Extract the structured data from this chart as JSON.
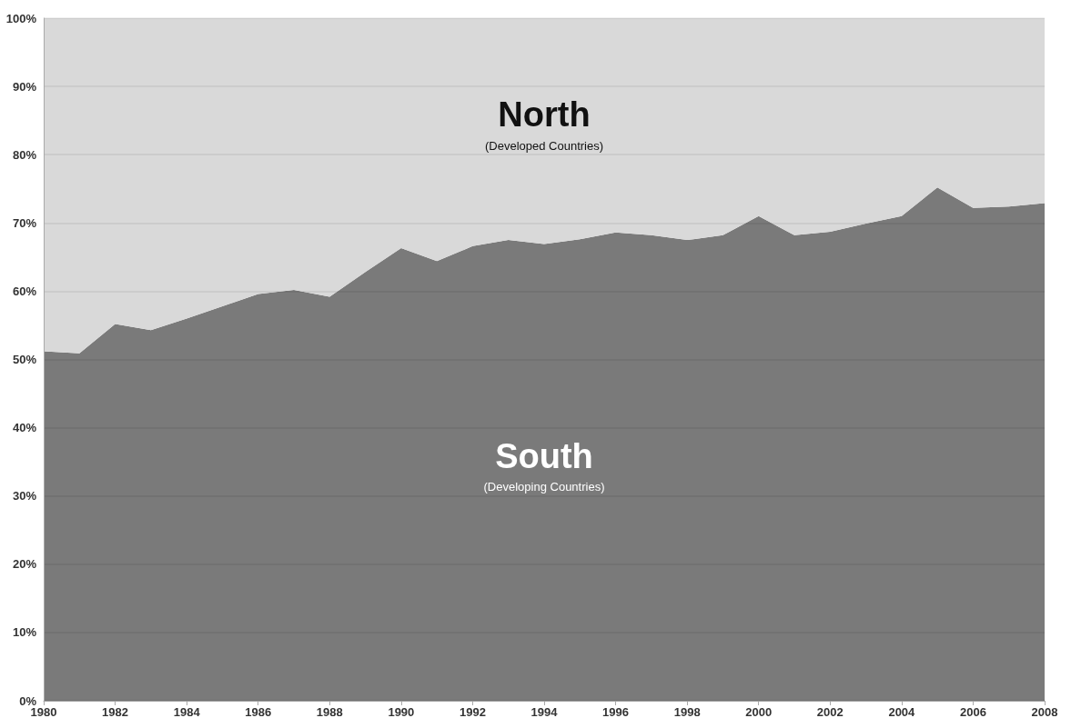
{
  "chart_data": {
    "type": "area",
    "stacked": true,
    "x": [
      1980,
      1981,
      1982,
      1983,
      1984,
      1985,
      1986,
      1987,
      1988,
      1989,
      1990,
      1991,
      1992,
      1993,
      1994,
      1995,
      1996,
      1997,
      1998,
      1999,
      2000,
      2001,
      2002,
      2003,
      2004,
      2005,
      2006,
      2007,
      2008
    ],
    "series": [
      {
        "name": "South",
        "color": "#7a7a7a",
        "values": [
          51.2,
          50.9,
          55.2,
          54.3,
          56,
          57.8,
          59.6,
          60.2,
          59.2,
          62.8,
          66.3,
          64.4,
          66.6,
          67.5,
          66.9,
          67.6,
          68.6,
          68.2,
          67.5,
          68.2,
          71,
          68.2,
          68.7,
          69.9,
          71,
          75.2,
          72.2,
          72.4,
          72.9
        ]
      },
      {
        "name": "North",
        "color": "#d9d9d9",
        "values": [
          48.8,
          49.1,
          44.8,
          45.7,
          44,
          42.2,
          40.4,
          39.8,
          40.8,
          37.2,
          33.7,
          35.6,
          33.4,
          32.5,
          33.1,
          32.4,
          31.4,
          31.8,
          32.5,
          31.8,
          29,
          31.8,
          31.3,
          30.1,
          29,
          24.8,
          27.8,
          27.6,
          27.1
        ]
      }
    ],
    "annotations": [
      "(Developing Countries)",
      "(Developed Countries)"
    ],
    "xlim": [
      1980,
      2008
    ],
    "xticks": [
      1980,
      1982,
      1984,
      1986,
      1988,
      1990,
      1992,
      1994,
      1996,
      1998,
      2000,
      2002,
      2004,
      2006,
      2008
    ],
    "ylim": [
      0,
      100
    ],
    "yticks": [
      {
        "value": 0,
        "label": "0%"
      },
      {
        "value": 10,
        "label": "10%"
      },
      {
        "value": 20,
        "label": "20%"
      },
      {
        "value": 30,
        "label": "30%"
      },
      {
        "value": 40,
        "label": "40%"
      },
      {
        "value": 50,
        "label": "50%"
      },
      {
        "value": 60,
        "label": "60%"
      },
      {
        "value": 70,
        "label": "70%"
      },
      {
        "value": 80,
        "label": "80%"
      },
      {
        "value": 90,
        "label": "90%"
      },
      {
        "value": 100,
        "label": "100%"
      }
    ],
    "grid": "y",
    "legend": false
  }
}
